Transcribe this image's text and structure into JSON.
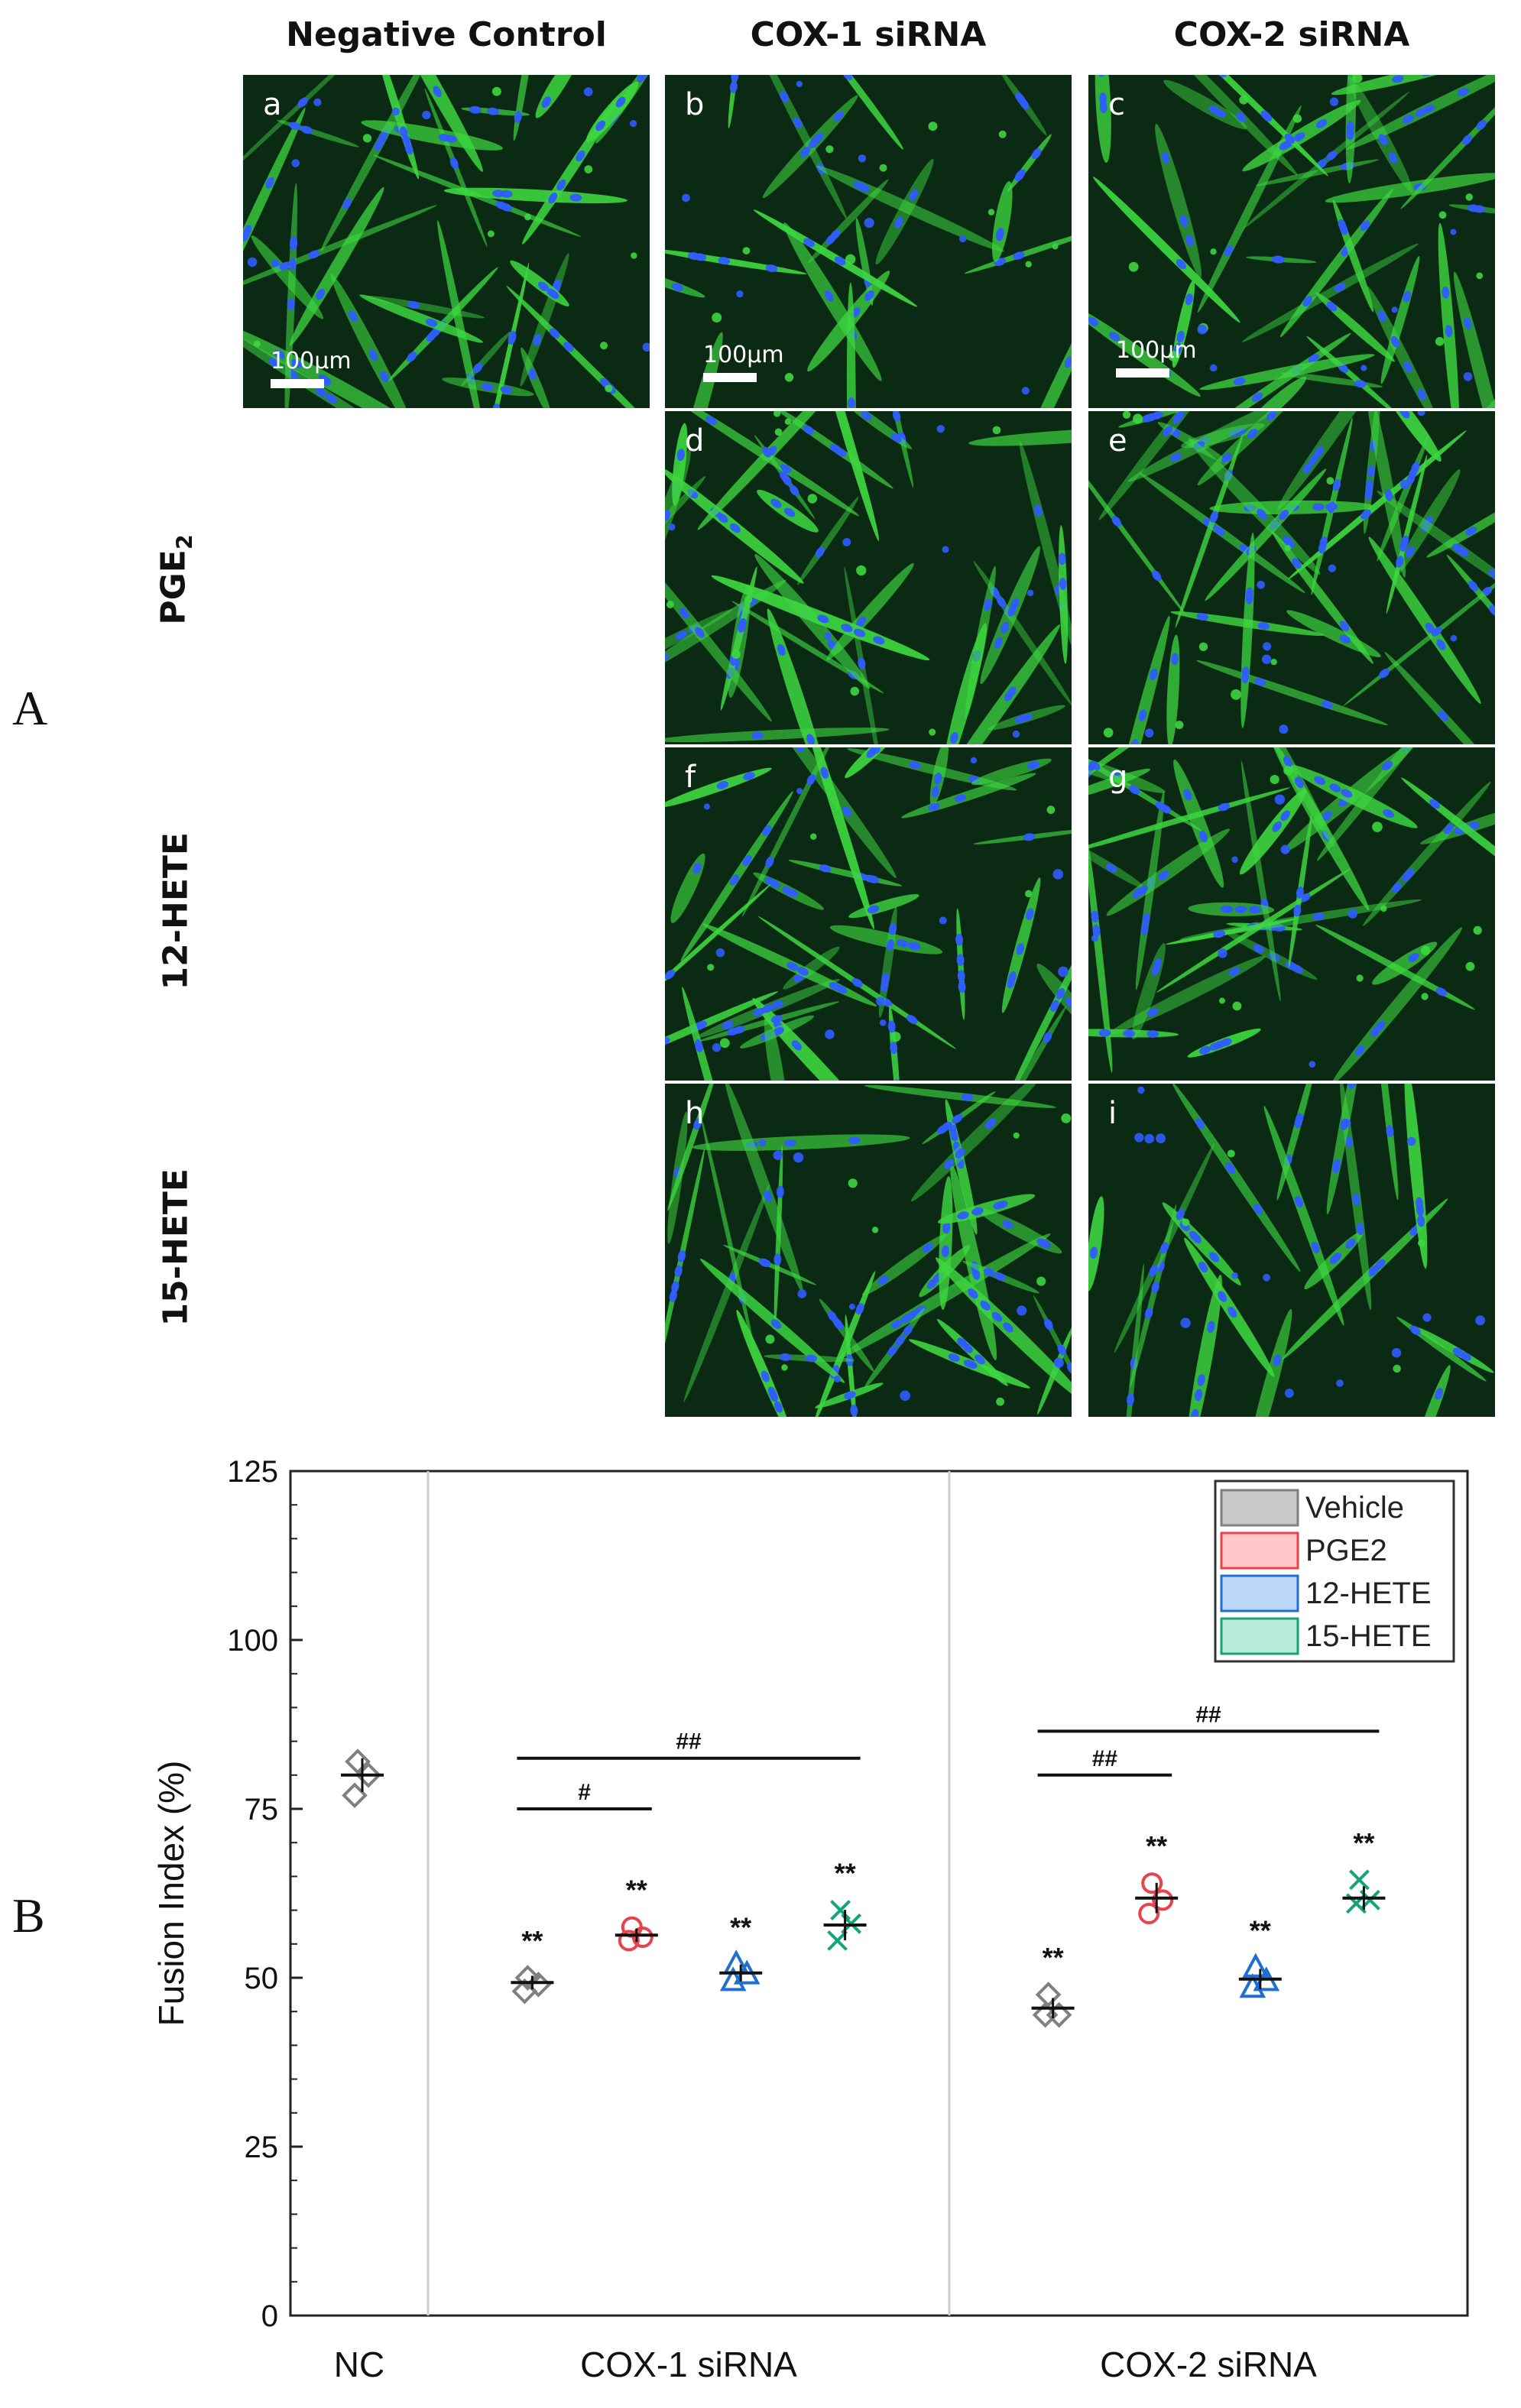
{
  "figure": {
    "panel_a": "A",
    "panel_b": "B",
    "columns": [
      "Negative Control",
      "COX-1 siRNA",
      "COX-2 siRNA"
    ],
    "rows": {
      "pge2_main": "PGE",
      "pge2_sub": "2",
      "hete12": "12-HETE",
      "hete15": "15-HETE"
    },
    "micrographs": [
      {
        "id": "a",
        "letter": "a",
        "scale": "100µm"
      },
      {
        "id": "b",
        "letter": "b",
        "scale": "100µm"
      },
      {
        "id": "c",
        "letter": "c",
        "scale": "100µm"
      },
      {
        "id": "d",
        "letter": "d"
      },
      {
        "id": "e",
        "letter": "e"
      },
      {
        "id": "f",
        "letter": "f"
      },
      {
        "id": "g",
        "letter": "g"
      },
      {
        "id": "h",
        "letter": "h"
      },
      {
        "id": "i",
        "letter": "i"
      }
    ],
    "colors": {
      "background": "#0b2a14",
      "cytoplasm": "#3dd640",
      "nuclei": "#2f5bff"
    }
  },
  "chart_data": {
    "type": "scatter",
    "ylabel": "Fusion Index (%)",
    "ylim": [
      0,
      125
    ],
    "yticks": [
      0,
      25,
      50,
      75,
      100,
      125
    ],
    "groups": [
      "NC",
      "COX-1 siRNA",
      "COX-2 siRNA"
    ],
    "legend": {
      "placement": "top-right",
      "entries": [
        {
          "name": "Vehicle",
          "color": "#808080",
          "fill": "#c8c8c8"
        },
        {
          "name": "PGE2",
          "color": "#e8434b",
          "fill": "#ffc6c8"
        },
        {
          "name": "12-HETE",
          "color": "#1f6fd0",
          "fill": "#bcd6f6"
        },
        {
          "name": "15-HETE",
          "color": "#16a37a",
          "fill": "#b7ead9"
        }
      ]
    },
    "series": [
      {
        "group": "NC",
        "treatment": "Vehicle",
        "marker": "diamond",
        "mean": 80,
        "points": [
          82,
          80,
          77
        ],
        "sig": ""
      },
      {
        "group": "COX-1 siRNA",
        "treatment": "Vehicle",
        "marker": "diamond",
        "mean": 49.3,
        "points": [
          50,
          49,
          48
        ],
        "sig": "**"
      },
      {
        "group": "COX-1 siRNA",
        "treatment": "PGE2",
        "marker": "circle",
        "mean": 56.3,
        "points": [
          57.5,
          56,
          55.5
        ],
        "sig": "**"
      },
      {
        "group": "COX-1 siRNA",
        "treatment": "12-HETE",
        "marker": "triangle",
        "mean": 50.7,
        "points": [
          52,
          50.5,
          49.5
        ],
        "sig": "**"
      },
      {
        "group": "COX-1 siRNA",
        "treatment": "15-HETE",
        "marker": "x",
        "mean": 57.8,
        "points": [
          60,
          58,
          55.5
        ],
        "sig": "**"
      },
      {
        "group": "COX-2 siRNA",
        "treatment": "Vehicle",
        "marker": "diamond",
        "mean": 45.5,
        "points": [
          47.5,
          44.5,
          44.5
        ],
        "sig": "**"
      },
      {
        "group": "COX-2 siRNA",
        "treatment": "PGE2",
        "marker": "circle",
        "mean": 61.8,
        "points": [
          64,
          61.5,
          59.5
        ],
        "sig": "**"
      },
      {
        "group": "COX-2 siRNA",
        "treatment": "12-HETE",
        "marker": "triangle",
        "mean": 49.8,
        "points": [
          51.5,
          49.5,
          48.5
        ],
        "sig": "**"
      },
      {
        "group": "COX-2 siRNA",
        "treatment": "15-HETE",
        "marker": "x",
        "mean": 61.8,
        "points": [
          64.5,
          61.5,
          61
        ],
        "sig": "**"
      }
    ],
    "comparisons": [
      {
        "from": "COX-1 siRNA Vehicle",
        "to": "COX-1 siRNA PGE2",
        "y": 75,
        "label": "#"
      },
      {
        "from": "COX-1 siRNA Vehicle",
        "to": "COX-1 siRNA 15-HETE",
        "y": 82.5,
        "label": "##"
      },
      {
        "from": "COX-2 siRNA Vehicle",
        "to": "COX-2 siRNA PGE2",
        "y": 80,
        "label": "##"
      },
      {
        "from": "COX-2 siRNA Vehicle",
        "to": "COX-2 siRNA 15-HETE",
        "y": 86.5,
        "label": "##"
      }
    ]
  }
}
